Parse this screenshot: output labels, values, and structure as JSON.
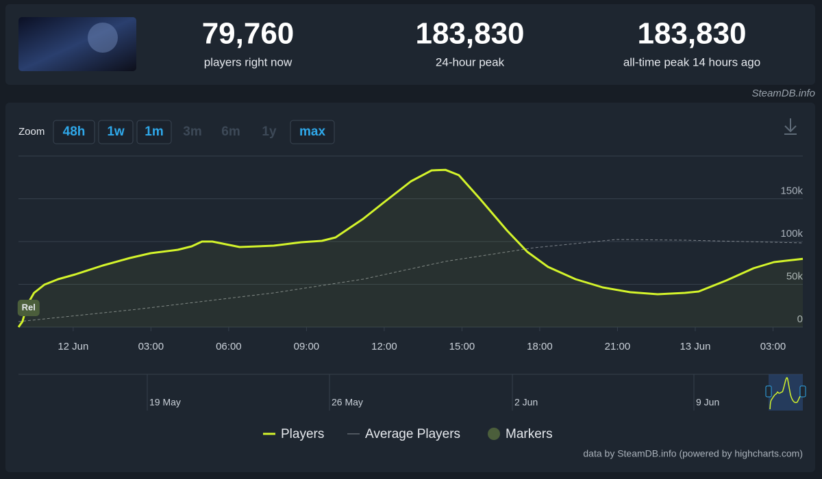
{
  "header": {
    "stats": [
      {
        "value": "79,760",
        "label": "players right now"
      },
      {
        "value": "183,830",
        "label": "24-hour peak"
      },
      {
        "value": "183,830",
        "label": "all-time peak 14 hours ago"
      }
    ],
    "source": "SteamDB.info"
  },
  "zoom": {
    "label": "Zoom",
    "buttons": [
      {
        "text": "48h",
        "active": true
      },
      {
        "text": "1w",
        "active": true
      },
      {
        "text": "1m",
        "active": true
      },
      {
        "text": "3m",
        "active": false
      },
      {
        "text": "6m",
        "active": false
      },
      {
        "text": "1y",
        "active": false
      },
      {
        "text": "max",
        "active": true
      }
    ]
  },
  "chart_data": {
    "type": "line",
    "xlim": [
      -2.11,
      28.15
    ],
    "xticks": [
      {
        "value": 0,
        "label": "12 Jun"
      },
      {
        "value": 3,
        "label": "03:00"
      },
      {
        "value": 6,
        "label": "06:00"
      },
      {
        "value": 9,
        "label": "09:00"
      },
      {
        "value": 12,
        "label": "12:00"
      },
      {
        "value": 15,
        "label": "15:00"
      },
      {
        "value": 18,
        "label": "18:00"
      },
      {
        "value": 21,
        "label": "21:00"
      },
      {
        "value": 24,
        "label": "13 Jun"
      },
      {
        "value": 27,
        "label": "03:00"
      }
    ],
    "ylim": [
      0,
      200000
    ],
    "yticks": [
      0,
      {
        "value": 50000,
        "label": "50k"
      },
      {
        "value": 100000,
        "label": "100k"
      },
      {
        "value": 150000,
        "label": "150k"
      }
    ],
    "grid": true,
    "series": [
      {
        "name": "Players",
        "color": "#d4f42b",
        "dashed": false,
        "x": [
          -2.11,
          -1.96,
          -1.77,
          -1.51,
          -1.11,
          -0.58,
          0.08,
          1.14,
          2.19,
          2.99,
          4.04,
          4.57,
          4.97,
          5.37,
          6.42,
          7.74,
          8.8,
          9.59,
          10.12,
          11.18,
          11.98,
          13.03,
          13.83,
          14.36,
          14.88,
          15.68,
          16.74,
          17.52,
          18.32,
          19.38,
          20.43,
          21.49,
          22.55,
          23.6,
          24.13,
          25.19,
          26.25,
          27.04,
          28.15
        ],
        "values": [
          0,
          6400,
          26400,
          40000,
          49600,
          56000,
          61600,
          72000,
          80800,
          86400,
          90400,
          94400,
          100000,
          100000,
          93600,
          95200,
          99200,
          100800,
          104800,
          126400,
          145600,
          170400,
          183200,
          183830,
          177600,
          150400,
          112800,
          88000,
          70400,
          56000,
          46400,
          40800,
          38400,
          40000,
          41600,
          54400,
          68800,
          76000,
          79760
        ]
      },
      {
        "name": "Average Players",
        "color": "#80868e",
        "dashed": true,
        "x": [
          -2.11,
          2.46,
          7.74,
          11.18,
          14.36,
          17.79,
          20.96,
          23.6,
          28.15
        ],
        "values": [
          6400,
          20800,
          40000,
          56000,
          76800,
          92800,
          102400,
          101600,
          98400
        ]
      }
    ],
    "markers": {
      "name": "Markers",
      "color": "#4b5e3b",
      "points": [
        {
          "label": "Rel",
          "x": -1.72
        }
      ]
    },
    "navigator": {
      "labels": [
        "19 May",
        "26 May",
        "2 Jun",
        "9 Jun"
      ]
    },
    "credits": "data by SteamDB.info (powered by highcharts.com)"
  }
}
